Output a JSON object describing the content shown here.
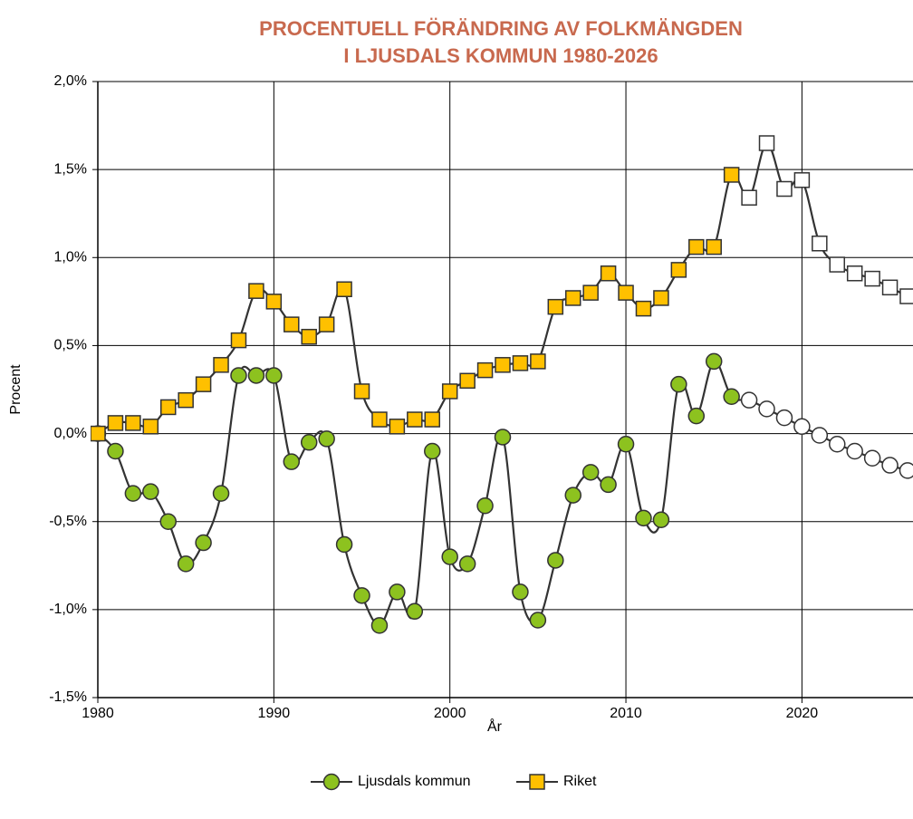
{
  "chart_data": {
    "type": "line",
    "title": [
      "PROCENTUELL FÖRÄNDRING AV FOLKMÄNGDEN",
      "I LJUSDALS KOMMUN 1980-2026"
    ],
    "x_label": "År",
    "y_label": "Procent",
    "x": [
      1980,
      1981,
      1982,
      1983,
      1984,
      1985,
      1986,
      1987,
      1988,
      1989,
      1990,
      1991,
      1992,
      1993,
      1994,
      1995,
      1996,
      1997,
      1998,
      1999,
      2000,
      2001,
      2002,
      2003,
      2004,
      2005,
      2006,
      2007,
      2008,
      2009,
      2010,
      2011,
      2012,
      2013,
      2014,
      2015,
      2016,
      2017,
      2018,
      2019,
      2020,
      2021,
      2022,
      2023,
      2024,
      2025,
      2026
    ],
    "series": [
      {
        "name": "Ljusdals kommun",
        "color": "#8dc21f",
        "marker": "circle",
        "values": [
          0.0,
          -0.1,
          -0.34,
          -0.33,
          -0.5,
          -0.74,
          -0.62,
          -0.34,
          0.33,
          0.33,
          0.33,
          -0.16,
          -0.05,
          -0.03,
          -0.63,
          -0.92,
          -1.09,
          -0.9,
          -1.01,
          -0.1,
          -0.7,
          -0.74,
          -0.41,
          -0.02,
          -0.9,
          -1.06,
          -0.72,
          -0.35,
          -0.22,
          -0.29,
          -0.06,
          -0.48,
          -0.49,
          0.28,
          0.1,
          0.41,
          0.21,
          0.19,
          0.14,
          0.09,
          0.04,
          -0.01,
          -0.06,
          -0.1,
          -0.14,
          -0.18,
          -0.21
        ]
      },
      {
        "name": "Riket",
        "color": "#ffc000",
        "marker": "square",
        "values": [
          0.0,
          0.06,
          0.06,
          0.04,
          0.15,
          0.19,
          0.28,
          0.39,
          0.53,
          0.81,
          0.75,
          0.62,
          0.55,
          0.62,
          0.82,
          0.24,
          0.08,
          0.04,
          0.08,
          0.08,
          0.24,
          0.3,
          0.36,
          0.39,
          0.4,
          0.41,
          0.72,
          0.77,
          0.8,
          0.91,
          0.8,
          0.71,
          0.77,
          0.93,
          1.06,
          1.06,
          1.47,
          1.34,
          1.65,
          1.39,
          1.44,
          1.08,
          0.96,
          0.91,
          0.88,
          0.83,
          0.78
        ]
      }
    ],
    "forecast_from": 2017,
    "forecast_color": "#ffffff",
    "xlim": [
      1980,
      2026
    ],
    "xticks": [
      1980,
      1990,
      2000,
      2010,
      2020
    ],
    "ylim": [
      -1.5,
      2.0
    ],
    "yticks": [
      {
        "value": -1.5,
        "label": "-1,5%"
      },
      {
        "value": -1.0,
        "label": "-1,0%"
      },
      {
        "value": -0.5,
        "label": "-0,5%"
      },
      {
        "value": 0,
        "label": "0,0%"
      },
      {
        "value": 0.5,
        "label": "0,5%"
      },
      {
        "value": 1.0,
        "label": "1,0%"
      },
      {
        "value": 1.5,
        "label": "1,5%"
      },
      {
        "value": 2.0,
        "label": "2,0%"
      }
    ],
    "grid": true,
    "legend": "bottom"
  }
}
